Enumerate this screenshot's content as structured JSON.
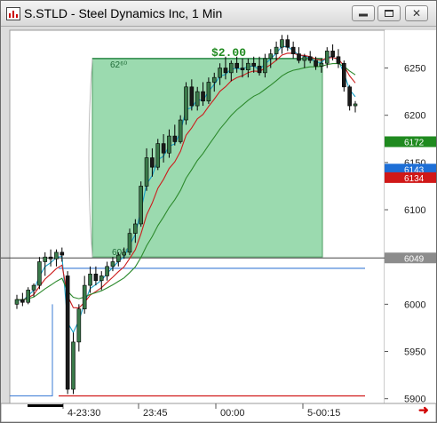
{
  "window": {
    "title": "S.STLD - Steel Dynamics Inc, 1 Min",
    "buttons": [
      "minimize",
      "maximize",
      "close"
    ]
  },
  "chart_data": {
    "type": "candlestick",
    "y_axis": {
      "ticks": [
        "6250",
        "6200",
        "6150",
        "6100",
        "6050",
        "6000",
        "5950",
        "5900"
      ],
      "range": [
        5895,
        6290
      ]
    },
    "x_axis": {
      "ticks": [
        "4-23:30",
        "23:45",
        "00:00",
        "5-00:15"
      ]
    },
    "price_tags": [
      {
        "label": "6172",
        "value": 6172,
        "color": "#1f8a1f"
      },
      {
        "label": "6143",
        "value": 6143,
        "color": "#1e6fd6"
      },
      {
        "label": "6134",
        "value": 6134,
        "color": "#d01818"
      },
      {
        "label": "6049",
        "value": 6049,
        "color": "#8c8c8c"
      }
    ],
    "annotation": {
      "label": "$2.00",
      "top_label": "62⁶⁰",
      "bottom_label": "60⁵⁰",
      "top": 6260,
      "bottom": 6050,
      "color": "#7fcf98"
    },
    "levels": [
      {
        "name": "horizontal-line",
        "value": 6049,
        "color": "#444444"
      },
      {
        "name": "blue-level",
        "value": 6038,
        "color": "#3a7bd5"
      },
      {
        "name": "red-level",
        "value": 5903,
        "color": "#d01818"
      }
    ],
    "candles": [
      [
        6000,
        6010,
        5995,
        6005
      ],
      [
        6005,
        6012,
        5998,
        6002
      ],
      [
        6002,
        6018,
        6000,
        6015
      ],
      [
        6015,
        6022,
        6008,
        6020
      ],
      [
        6020,
        6050,
        6016,
        6045
      ],
      [
        6045,
        6055,
        6030,
        6050
      ],
      [
        6050,
        6058,
        6040,
        6048
      ],
      [
        6048,
        6058,
        6040,
        6055
      ],
      [
        6055,
        6060,
        6045,
        6052
      ],
      [
        6030,
        6035,
        5905,
        5910
      ],
      [
        5910,
        5970,
        5905,
        5960
      ],
      [
        5960,
        6000,
        5950,
        5995
      ],
      [
        5995,
        6030,
        5990,
        6020
      ],
      [
        6020,
        6040,
        6012,
        6032
      ],
      [
        6032,
        6040,
        6020,
        6025
      ],
      [
        6025,
        6035,
        6015,
        6030
      ],
      [
        6030,
        6045,
        6025,
        6040
      ],
      [
        6040,
        6050,
        6035,
        6045
      ],
      [
        6045,
        6055,
        6040,
        6052
      ],
      [
        6052,
        6060,
        6048,
        6055
      ],
      [
        6055,
        6080,
        6052,
        6075
      ],
      [
        6075,
        6090,
        6065,
        6085
      ],
      [
        6085,
        6130,
        6082,
        6125
      ],
      [
        6125,
        6165,
        6120,
        6155
      ],
      [
        6155,
        6165,
        6135,
        6145
      ],
      [
        6145,
        6175,
        6142,
        6170
      ],
      [
        6170,
        6180,
        6150,
        6160
      ],
      [
        6160,
        6185,
        6155,
        6178
      ],
      [
        6178,
        6190,
        6168,
        6172
      ],
      [
        6172,
        6200,
        6170,
        6195
      ],
      [
        6195,
        6235,
        6190,
        6230
      ],
      [
        6230,
        6238,
        6205,
        6210
      ],
      [
        6210,
        6230,
        6205,
        6225
      ],
      [
        6225,
        6235,
        6210,
        6215
      ],
      [
        6215,
        6240,
        6212,
        6235
      ],
      [
        6235,
        6245,
        6225,
        6240
      ],
      [
        6240,
        6255,
        6232,
        6250
      ],
      [
        6250,
        6262,
        6238,
        6245
      ],
      [
        6245,
        6258,
        6236,
        6255
      ],
      [
        6255,
        6262,
        6245,
        6250
      ],
      [
        6250,
        6260,
        6240,
        6248
      ],
      [
        6248,
        6260,
        6240,
        6255
      ],
      [
        6255,
        6262,
        6245,
        6252
      ],
      [
        6252,
        6262,
        6242,
        6245
      ],
      [
        6245,
        6265,
        6240,
        6260
      ],
      [
        6260,
        6270,
        6250,
        6265
      ],
      [
        6265,
        6278,
        6258,
        6272
      ],
      [
        6272,
        6285,
        6265,
        6280
      ],
      [
        6280,
        6285,
        6268,
        6272
      ],
      [
        6272,
        6278,
        6260,
        6265
      ],
      [
        6265,
        6272,
        6255,
        6258
      ],
      [
        6258,
        6265,
        6250,
        6262
      ],
      [
        6262,
        6268,
        6255,
        6258
      ],
      [
        6258,
        6262,
        6248,
        6252
      ],
      [
        6252,
        6260,
        6245,
        6255
      ],
      [
        6255,
        6272,
        6250,
        6268
      ],
      [
        6268,
        6275,
        6258,
        6262
      ],
      [
        6262,
        6270,
        6250,
        6255
      ],
      [
        6255,
        6258,
        6225,
        6230
      ],
      [
        6230,
        6232,
        6205,
        6210
      ],
      [
        6210,
        6215,
        6203,
        6212
      ]
    ],
    "series": [
      {
        "name": "ma-fast",
        "color": "#18a0c8"
      },
      {
        "name": "ma-mid",
        "color": "#cc1d1d"
      },
      {
        "name": "ma-slow",
        "color": "#2d8a2d"
      }
    ]
  }
}
